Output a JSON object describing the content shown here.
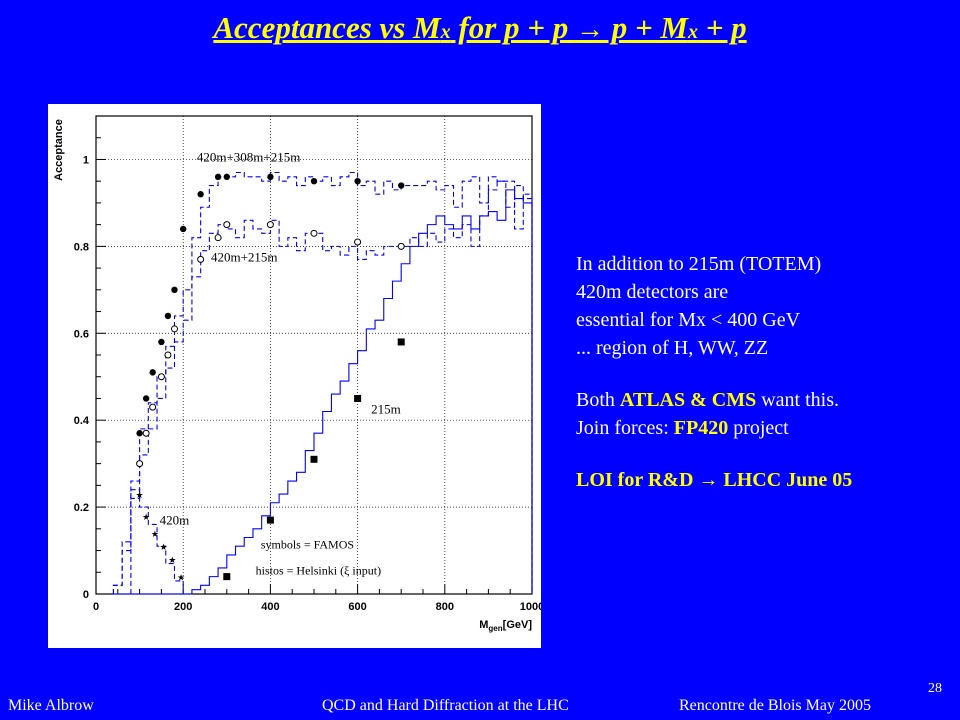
{
  "slide": {
    "title_pre": "Acceptances vs M",
    "title_sub": "x",
    "title_mid": " for p + p ",
    "title_arrow": "→",
    "title_post": " p + M",
    "title_sub2": "x",
    "title_end": " + p",
    "number": "28"
  },
  "side_text": {
    "line1": "In addition to 215m (TOTEM)",
    "line2": "420m detectors are",
    "line3": "essential for Mx < 400 GeV",
    "line4": "... region of H, WW, ZZ",
    "line5_pre": "Both ",
    "line5_hl": "ATLAS & CMS",
    "line5_post": " want this.",
    "line6_pre": "Join forces: ",
    "line6_hl": "FP420",
    "line6_post": " project",
    "line7": "LOI for R&D → LHCC June 05"
  },
  "footer": {
    "author": "Mike Albrow",
    "talk": "QCD and Hard Diffraction at the LHC",
    "venue": "Rencontre de Blois May 2005"
  },
  "colors": {
    "background": "#0000ff",
    "title": "#ffff00",
    "histo": "#0000ff",
    "points": "#000000"
  },
  "chart_data": {
    "type": "line",
    "ylabel": "Acceptance",
    "xlabel": "M",
    "xlabel_sub": "gen",
    "xlabel_unit": "[GeV]",
    "xlim": [
      0,
      1000
    ],
    "ylim": [
      0,
      1.1
    ],
    "xticks": [
      0,
      200,
      400,
      600,
      800,
      1000
    ],
    "yticks": [
      0,
      0.2,
      0.4,
      0.6,
      0.8,
      1
    ],
    "ytick_labels": [
      "0",
      "0.2",
      "0.4",
      "0.6",
      "0.8",
      "1"
    ],
    "grid": true,
    "annotations": {
      "a1": "420m+308m+215m",
      "a2": "420m+215m",
      "a3": "215m",
      "a4": "420m",
      "legend1": "symbols = FAMOS",
      "legend2": "histos = Helsinki (ξ input)"
    },
    "series": [
      {
        "label_key": "a1",
        "style": "dashed",
        "kind": "histogram",
        "edges": [
          40,
          60,
          80,
          100,
          120,
          140,
          160,
          180,
          200,
          220,
          240,
          260,
          280,
          300,
          320,
          340,
          360,
          380,
          400,
          420,
          440,
          460,
          480,
          500,
          520,
          540,
          560,
          580,
          600,
          620,
          640,
          660,
          680,
          700,
          720,
          740,
          760,
          780,
          800,
          820,
          840,
          860,
          880,
          900,
          920,
          940,
          960,
          980,
          1000
        ],
        "values": [
          0.02,
          0.12,
          0.26,
          0.38,
          0.44,
          0.5,
          0.57,
          0.64,
          0.7,
          0.82,
          0.89,
          0.94,
          0.96,
          0.96,
          0.97,
          0.96,
          0.96,
          0.95,
          0.97,
          0.95,
          0.96,
          0.94,
          0.96,
          0.95,
          0.96,
          0.94,
          0.96,
          0.97,
          0.94,
          0.95,
          0.92,
          0.95,
          0.93,
          0.94,
          0.94,
          0.94,
          0.95,
          0.93,
          0.94,
          0.89,
          0.95,
          0.96,
          0.9,
          0.96,
          0.95,
          0.95,
          0.84,
          0.92
        ]
      },
      {
        "label_key": "a2",
        "style": "dashed",
        "kind": "histogram",
        "edges": [
          40,
          60,
          80,
          100,
          120,
          140,
          160,
          180,
          200,
          220,
          240,
          260,
          280,
          300,
          320,
          340,
          360,
          380,
          400,
          420,
          440,
          460,
          480,
          500,
          520,
          540,
          560,
          580,
          600,
          620,
          640,
          660,
          680,
          700,
          720,
          740,
          760,
          780,
          800,
          820,
          840,
          860,
          880,
          900,
          920,
          940,
          960,
          980,
          1000
        ],
        "values": [
          0.02,
          0.1,
          0.22,
          0.32,
          0.38,
          0.45,
          0.52,
          0.58,
          0.63,
          0.73,
          0.79,
          0.83,
          0.85,
          0.84,
          0.82,
          0.86,
          0.84,
          0.83,
          0.86,
          0.8,
          0.82,
          0.79,
          0.83,
          0.83,
          0.79,
          0.8,
          0.78,
          0.8,
          0.77,
          0.79,
          0.78,
          0.8,
          0.8,
          0.8,
          0.82,
          0.8,
          0.83,
          0.81,
          0.84,
          0.82,
          0.85,
          0.8,
          0.87,
          0.93,
          0.95,
          0.89,
          0.94,
          0.91
        ]
      },
      {
        "label_key": "a3",
        "style": "solid",
        "kind": "histogram",
        "edges": [
          40,
          60,
          80,
          100,
          120,
          140,
          160,
          180,
          200,
          220,
          240,
          260,
          280,
          300,
          320,
          340,
          360,
          380,
          400,
          420,
          440,
          460,
          480,
          500,
          520,
          540,
          560,
          580,
          600,
          620,
          640,
          660,
          680,
          700,
          720,
          740,
          760,
          780,
          800,
          820,
          840,
          860,
          880,
          900,
          920,
          940,
          960,
          980,
          1000
        ],
        "values": [
          0,
          0,
          0,
          0,
          0,
          0,
          0,
          0,
          0,
          0.01,
          0.02,
          0.04,
          0.06,
          0.09,
          0.11,
          0.13,
          0.15,
          0.18,
          0.21,
          0.23,
          0.26,
          0.28,
          0.33,
          0.37,
          0.42,
          0.46,
          0.49,
          0.53,
          0.56,
          0.61,
          0.63,
          0.68,
          0.72,
          0.76,
          0.8,
          0.83,
          0.85,
          0.87,
          0.85,
          0.84,
          0.87,
          0.84,
          0.87,
          0.88,
          0.86,
          0.93,
          0.91,
          0.9
        ]
      },
      {
        "label_key": "a4",
        "style": "dashed",
        "kind": "histogram",
        "edges": [
          80,
          100,
          120,
          140,
          160,
          180,
          200
        ],
        "values": [
          0.24,
          0.2,
          0.16,
          0.11,
          0.07,
          0.03
        ]
      },
      {
        "label_key": "a1",
        "kind": "points",
        "marker": "filled-circle",
        "x": [
          100,
          115,
          130,
          150,
          165,
          180,
          200,
          240,
          280,
          300,
          400,
          500,
          600,
          700
        ],
        "y": [
          0.37,
          0.45,
          0.51,
          0.58,
          0.64,
          0.7,
          0.84,
          0.92,
          0.96,
          0.96,
          0.96,
          0.95,
          0.95,
          0.94
        ]
      },
      {
        "label_key": "a2",
        "kind": "points",
        "marker": "open-circle",
        "x": [
          100,
          115,
          130,
          150,
          165,
          180,
          240,
          280,
          300,
          400,
          500,
          600,
          700
        ],
        "y": [
          0.3,
          0.37,
          0.43,
          0.5,
          0.55,
          0.61,
          0.77,
          0.82,
          0.85,
          0.85,
          0.83,
          0.81,
          0.8
        ]
      },
      {
        "label_key": "a3",
        "kind": "points",
        "marker": "filled-square",
        "x": [
          300,
          400,
          500,
          600,
          700
        ],
        "y": [
          0.04,
          0.17,
          0.31,
          0.45,
          0.58
        ]
      },
      {
        "label_key": "a4",
        "kind": "points",
        "marker": "star",
        "x": [
          100,
          115,
          135,
          155,
          175,
          195
        ],
        "y": [
          0.23,
          0.18,
          0.14,
          0.11,
          0.08,
          0.04
        ]
      }
    ]
  }
}
